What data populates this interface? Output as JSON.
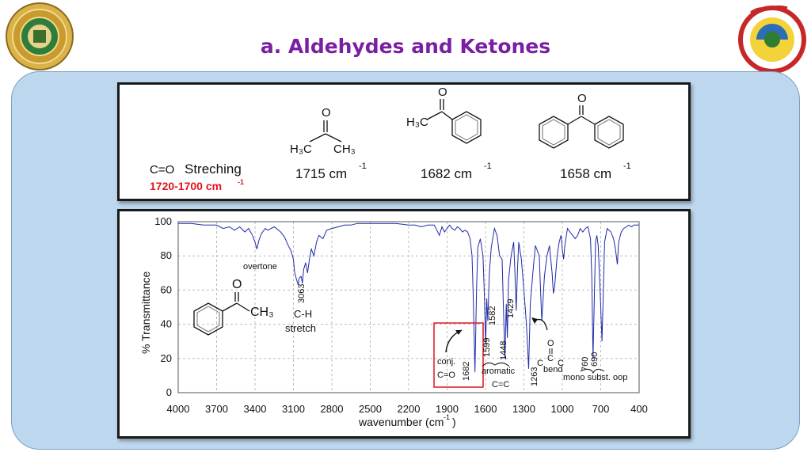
{
  "title": "a.  Aldehydes and Ketones",
  "logos": {
    "left": "university-seal",
    "right": "college-of-pharmacy-logo"
  },
  "top_box": {
    "co_label": "C=O",
    "streching": "Streching",
    "range_text": "1720-1700 cm",
    "range_sup": "-1",
    "compounds": [
      {
        "name": "acetone",
        "h3c": "H₃C",
        "ch3": "CH₃",
        "o": "O",
        "c": "C",
        "value": "1715 cm",
        "sup": "-1"
      },
      {
        "name": "acetophenone",
        "h3c": "H₃C",
        "o": "O",
        "c": "C",
        "value": "1682 cm",
        "sup": "-1"
      },
      {
        "name": "benzophenone",
        "o": "O",
        "c": "C",
        "value": "1658 cm",
        "sup": "-1"
      }
    ]
  },
  "spectrum": {
    "ylabel": "% Transmittance",
    "xlabel": "wavenumber (cm",
    "xlabel_sup": "-1",
    "xlabel_end": ")",
    "molecule": {
      "o": "O",
      "ch3": "CH₃"
    },
    "annotations": {
      "overtone": "overtone",
      "p3063": "3063",
      "ch1": "C-H",
      "ch2": "stretch",
      "conj1": "conj.",
      "conj2": "C=O",
      "p1682": "1682",
      "p1599": "1599",
      "p1582": "1582",
      "p1448": "1448",
      "p1429": "1429",
      "arom1": "aromatic",
      "arom2": "C=C",
      "p1263": "1263",
      "bend_o": "O",
      "bend_c1": "C",
      "bend_c2": "C",
      "bend_c3": "C",
      "bend": "bend",
      "p760": "760",
      "p690": "690",
      "mono": "mono subst. oop"
    }
  },
  "chart_data": {
    "type": "line",
    "xlabel": "wavenumber (cm-1)",
    "ylabel": "% Transmittance",
    "xlim": [
      4000,
      400
    ],
    "ylim": [
      0,
      100
    ],
    "x_ticks": [
      4000,
      3700,
      3400,
      3100,
      2800,
      2500,
      2200,
      1900,
      1600,
      1300,
      1000,
      700,
      400
    ],
    "y_ticks": [
      0,
      20,
      40,
      60,
      80,
      100
    ],
    "grid": true,
    "series": [
      {
        "x": [
          4000,
          3900,
          3800,
          3700,
          3650,
          3600,
          3560,
          3520,
          3480,
          3450,
          3420,
          3400,
          3385,
          3370,
          3350,
          3320,
          3300,
          3250,
          3200,
          3170,
          3140,
          3120,
          3100,
          3090,
          3075,
          3063,
          3055,
          3040,
          3030,
          3020,
          3005,
          2990,
          2975,
          2960,
          2940,
          2920,
          2900,
          2870,
          2840,
          2800,
          2750,
          2700,
          2650,
          2600,
          2500,
          2400,
          2300,
          2200,
          2150,
          2100,
          2050,
          2000,
          1980,
          1960,
          1940,
          1920,
          1900,
          1880,
          1860,
          1840,
          1820,
          1800,
          1780,
          1760,
          1740,
          1720,
          1705,
          1695,
          1682,
          1670,
          1660,
          1640,
          1620,
          1610,
          1599,
          1590,
          1582,
          1570,
          1555,
          1530,
          1510,
          1490,
          1470,
          1460,
          1448,
          1438,
          1429,
          1420,
          1400,
          1380,
          1370,
          1360,
          1350,
          1340,
          1320,
          1300,
          1290,
          1280,
          1263,
          1250,
          1230,
          1210,
          1180,
          1170,
          1160,
          1140,
          1120,
          1100,
          1080,
          1070,
          1060,
          1040,
          1025,
          1010,
          1000,
          990,
          980,
          960,
          940,
          920,
          900,
          880,
          860,
          840,
          820,
          800,
          780,
          770,
          760,
          750,
          740,
          730,
          720,
          705,
          690,
          680,
          670,
          650,
          620,
          600,
          585,
          570,
          560,
          540,
          520,
          500,
          480,
          460,
          440,
          420,
          400
        ],
        "y": [
          99,
          99,
          98,
          98,
          96,
          97,
          95,
          97,
          94,
          96,
          92,
          88,
          84,
          89,
          93,
          96,
          95,
          97,
          94,
          91,
          86,
          83,
          78,
          70,
          66,
          63,
          67,
          68,
          64,
          72,
          76,
          70,
          78,
          84,
          80,
          88,
          92,
          90,
          95,
          96,
          97,
          98,
          98,
          99,
          99,
          99,
          99,
          98,
          98,
          97,
          98,
          98,
          95,
          92,
          97,
          94,
          96,
          98,
          96,
          95,
          97,
          96,
          94,
          95,
          94,
          90,
          80,
          55,
          12,
          60,
          85,
          90,
          80,
          60,
          28,
          55,
          42,
          70,
          85,
          96,
          92,
          80,
          78,
          50,
          20,
          52,
          32,
          66,
          80,
          88,
          70,
          48,
          72,
          88,
          78,
          60,
          50,
          40,
          14,
          52,
          70,
          86,
          80,
          60,
          42,
          68,
          80,
          86,
          70,
          58,
          62,
          80,
          88,
          92,
          84,
          78,
          86,
          96,
          94,
          92,
          90,
          92,
          96,
          94,
          96,
          97,
          90,
          68,
          20,
          55,
          88,
          92,
          86,
          60,
          30,
          58,
          88,
          96,
          94,
          90,
          84,
          75,
          88,
          94,
          96,
          97,
          98,
          97,
          98,
          98,
          98
        ]
      }
    ]
  }
}
